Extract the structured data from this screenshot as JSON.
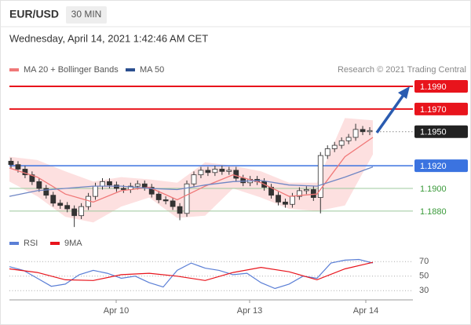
{
  "header": {
    "symbol": "EUR/USD",
    "interval": "30 MIN",
    "datetime": "Wednesday, April 14, 2021 1:42:46 AM CET",
    "credit": "Research © 2021 Trading Central"
  },
  "chart_data": [
    {
      "type": "candlestick",
      "ylim": [
        1.1865,
        1.2
      ],
      "open": [
        1.1924,
        1.1921,
        1.1917,
        1.1912,
        1.1906,
        1.19,
        1.1894,
        1.1887,
        1.1885,
        1.1882,
        1.1876,
        1.1884,
        1.1893,
        1.1902,
        1.1906,
        1.1903,
        1.19,
        1.1899,
        1.1902,
        1.1904,
        1.1901,
        1.1895,
        1.189,
        1.1889,
        1.1884,
        1.1878,
        1.1904,
        1.1912,
        1.1916,
        1.1914,
        1.1917,
        1.1915,
        1.1916,
        1.1909,
        1.1905,
        1.1908,
        1.1906,
        1.1901,
        1.1894,
        1.1888,
        1.1886,
        1.1893,
        1.1898,
        1.1899,
        1.1892,
        1.1929,
        1.1935,
        1.1938,
        1.1942,
        1.1945,
        1.1952,
        1.195
      ],
      "high": [
        1.1927,
        1.1924,
        1.192,
        1.1915,
        1.1909,
        1.1903,
        1.1897,
        1.189,
        1.1888,
        1.1885,
        1.1887,
        1.1896,
        1.1905,
        1.1909,
        1.1909,
        1.1906,
        1.1903,
        1.1905,
        1.1907,
        1.1907,
        1.1904,
        1.1898,
        1.1893,
        1.1892,
        1.1887,
        1.1907,
        1.1915,
        1.1919,
        1.1919,
        1.192,
        1.192,
        1.1919,
        1.1919,
        1.1912,
        1.1911,
        1.1911,
        1.1909,
        1.1904,
        1.1897,
        1.1891,
        1.1896,
        1.1901,
        1.1902,
        1.1902,
        1.1932,
        1.1938,
        1.1941,
        1.1945,
        1.1948,
        1.1957,
        1.1955,
        1.1954
      ],
      "low": [
        1.1918,
        1.1914,
        1.1909,
        1.1903,
        1.1897,
        1.1891,
        1.1884,
        1.1882,
        1.1879,
        1.1866,
        1.1873,
        1.1881,
        1.189,
        1.1899,
        1.19,
        1.1897,
        1.1896,
        1.1896,
        1.1899,
        1.1898,
        1.1892,
        1.1887,
        1.1886,
        1.1881,
        1.1872,
        1.1875,
        1.1901,
        1.1909,
        1.1911,
        1.1911,
        1.1912,
        1.1912,
        1.1906,
        1.1902,
        1.1902,
        1.1903,
        1.1898,
        1.1891,
        1.1885,
        1.1883,
        1.1883,
        1.189,
        1.1895,
        1.1889,
        1.1878,
        1.1926,
        1.1932,
        1.1935,
        1.1939,
        1.1942,
        1.1947,
        1.1947
      ],
      "close": [
        1.1921,
        1.1917,
        1.1912,
        1.1906,
        1.19,
        1.1894,
        1.1887,
        1.1885,
        1.1882,
        1.1876,
        1.1884,
        1.1893,
        1.1902,
        1.1906,
        1.1903,
        1.19,
        1.1899,
        1.1902,
        1.1904,
        1.1901,
        1.1895,
        1.189,
        1.1889,
        1.1884,
        1.1878,
        1.1904,
        1.1912,
        1.1916,
        1.1914,
        1.1917,
        1.1915,
        1.1916,
        1.1909,
        1.1905,
        1.1908,
        1.1906,
        1.1901,
        1.1894,
        1.1888,
        1.1886,
        1.1893,
        1.1898,
        1.1899,
        1.1892,
        1.1929,
        1.1935,
        1.1938,
        1.1942,
        1.1945,
        1.1952,
        1.195,
        1.1951
      ],
      "candle_color": "#333333",
      "series": [
        {
          "name": "MA 20 + Bollinger Bands",
          "color": "#f07878",
          "band_color": "#fde0e0",
          "values": [
            1.1918,
            1.191,
            1.1895,
            1.1888,
            1.1898,
            1.1901,
            1.189,
            1.1902,
            1.1912,
            1.1905,
            1.1893,
            1.1895,
            1.1928,
            1.1945
          ],
          "upper": [
            1.1928,
            1.1925,
            1.1915,
            1.1906,
            1.191,
            1.1908,
            1.1905,
            1.1923,
            1.192,
            1.1915,
            1.1905,
            1.1905,
            1.1962,
            1.196
          ],
          "lower": [
            1.1906,
            1.1893,
            1.1875,
            1.187,
            1.1884,
            1.1892,
            1.1874,
            1.1876,
            1.19,
            1.1892,
            1.1882,
            1.188,
            1.1885,
            1.193
          ]
        },
        {
          "name": "MA 50",
          "color": "#6f86c4",
          "legend_color": "#2b4f8f",
          "values": [
            1.1893,
            1.1898,
            1.19,
            1.1902,
            1.1902,
            1.19,
            1.1899,
            1.1903,
            1.1906,
            1.1907,
            1.1903,
            1.1902,
            1.191,
            1.1919
          ]
        }
      ],
      "levels": [
        {
          "value": 1.199,
          "label": "1.1990",
          "color": "#e8141c",
          "style": "solid",
          "box": true
        },
        {
          "value": 1.197,
          "label": "1.1970",
          "color": "#e8141c",
          "style": "solid",
          "box": true
        },
        {
          "value": 1.195,
          "label": "1.1950",
          "color": "#222222",
          "style": "dotted",
          "box": true
        },
        {
          "value": 1.192,
          "label": "1.1920",
          "color": "#3b73e0",
          "style": "solid",
          "box": true
        },
        {
          "value": 1.19,
          "label": "1.1900",
          "color": "#3a9a3a",
          "style": "thin",
          "box": false
        },
        {
          "value": 1.188,
          "label": "1.1880",
          "color": "#3a9a3a",
          "style": "thin",
          "box": false
        }
      ]
    },
    {
      "type": "line",
      "ylim": [
        20,
        80
      ],
      "yticks": [
        30,
        50,
        70
      ],
      "xticks": [
        "Apr 10",
        "Apr 13",
        "Apr 14"
      ],
      "series": [
        {
          "name": "RSI",
          "color": "#5b7fd6",
          "values": [
            63,
            58,
            47,
            36,
            39,
            52,
            58,
            54,
            47,
            50,
            41,
            35,
            58,
            68,
            61,
            58,
            52,
            54,
            41,
            33,
            39,
            50,
            47,
            68,
            72,
            73,
            68
          ]
        },
        {
          "name": "9MA",
          "color": "#e8141c",
          "values": [
            60,
            55,
            45,
            44,
            52,
            54,
            50,
            44,
            55,
            62,
            56,
            45,
            60,
            69
          ]
        }
      ]
    }
  ]
}
